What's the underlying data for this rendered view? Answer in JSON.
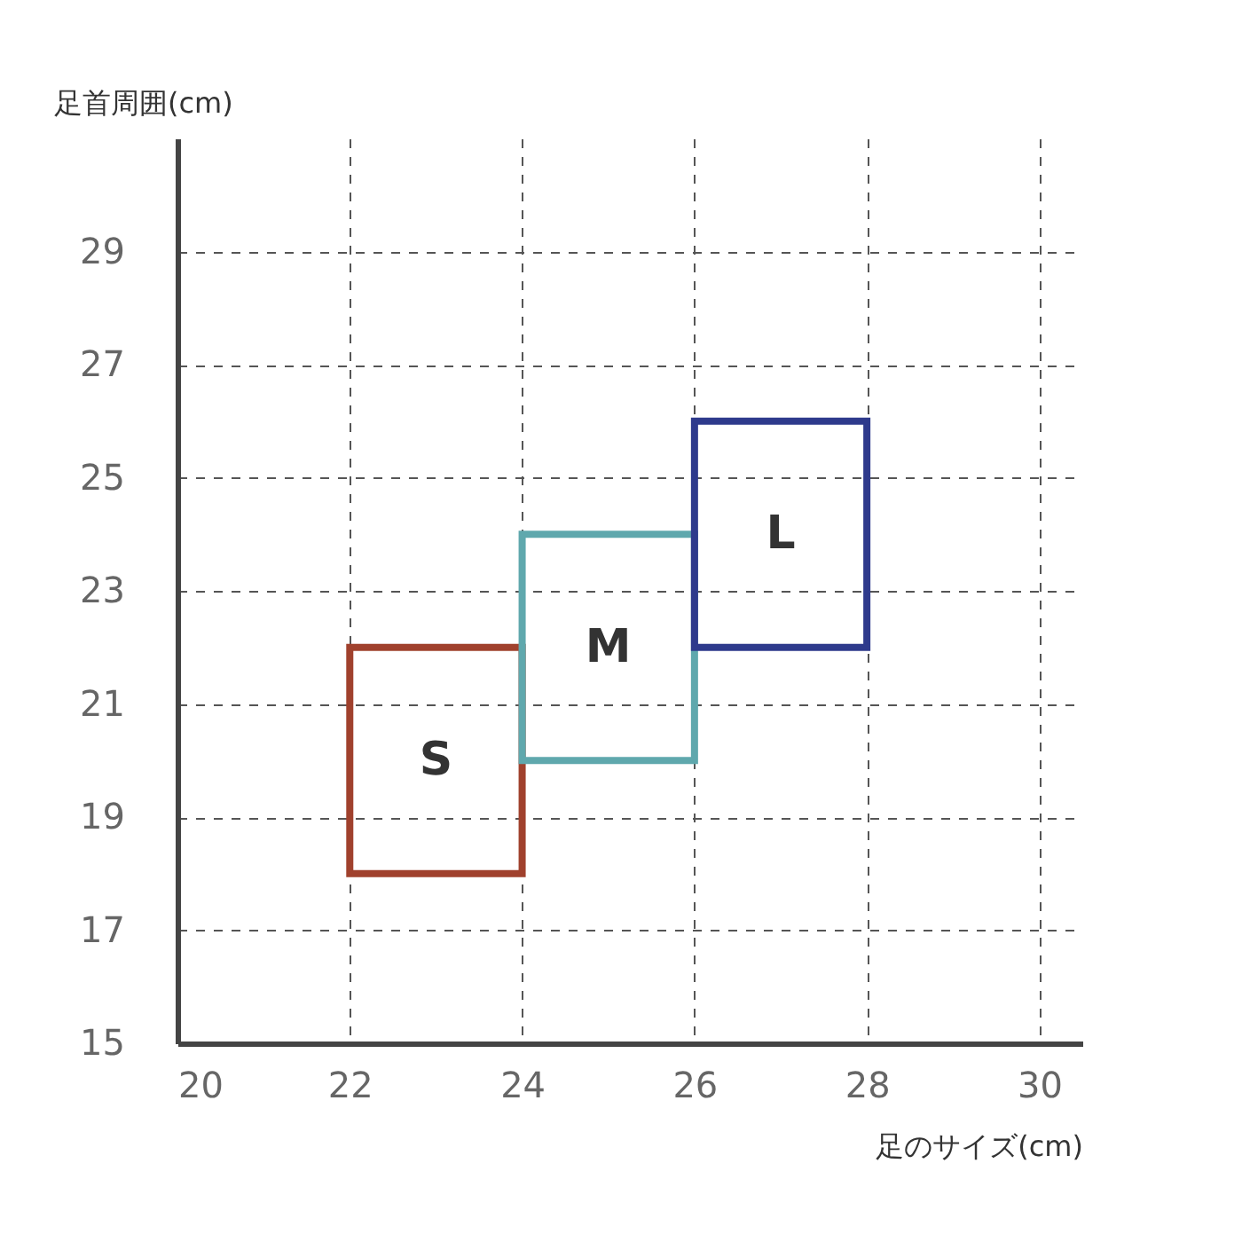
{
  "chart_data": {
    "type": "bar",
    "xlabel": "足のサイズ(cm)",
    "ylabel": "足首周囲(cm)",
    "x": [
      23,
      25,
      27
    ],
    "base": [
      18,
      20,
      22
    ],
    "values": [
      4,
      4,
      4
    ],
    "colors": [
      "#a0412d",
      "#5fa8ad",
      "#2e3a8c"
    ],
    "value_labels": [
      "S",
      "M",
      "L"
    ],
    "xlim": [
      20,
      30.5
    ],
    "xticks": [
      20,
      22,
      24,
      26,
      28,
      30
    ],
    "ylim": [
      15,
      31
    ],
    "yticks": [
      15,
      17,
      19,
      21,
      23,
      25,
      27,
      29
    ],
    "grid": true
  }
}
